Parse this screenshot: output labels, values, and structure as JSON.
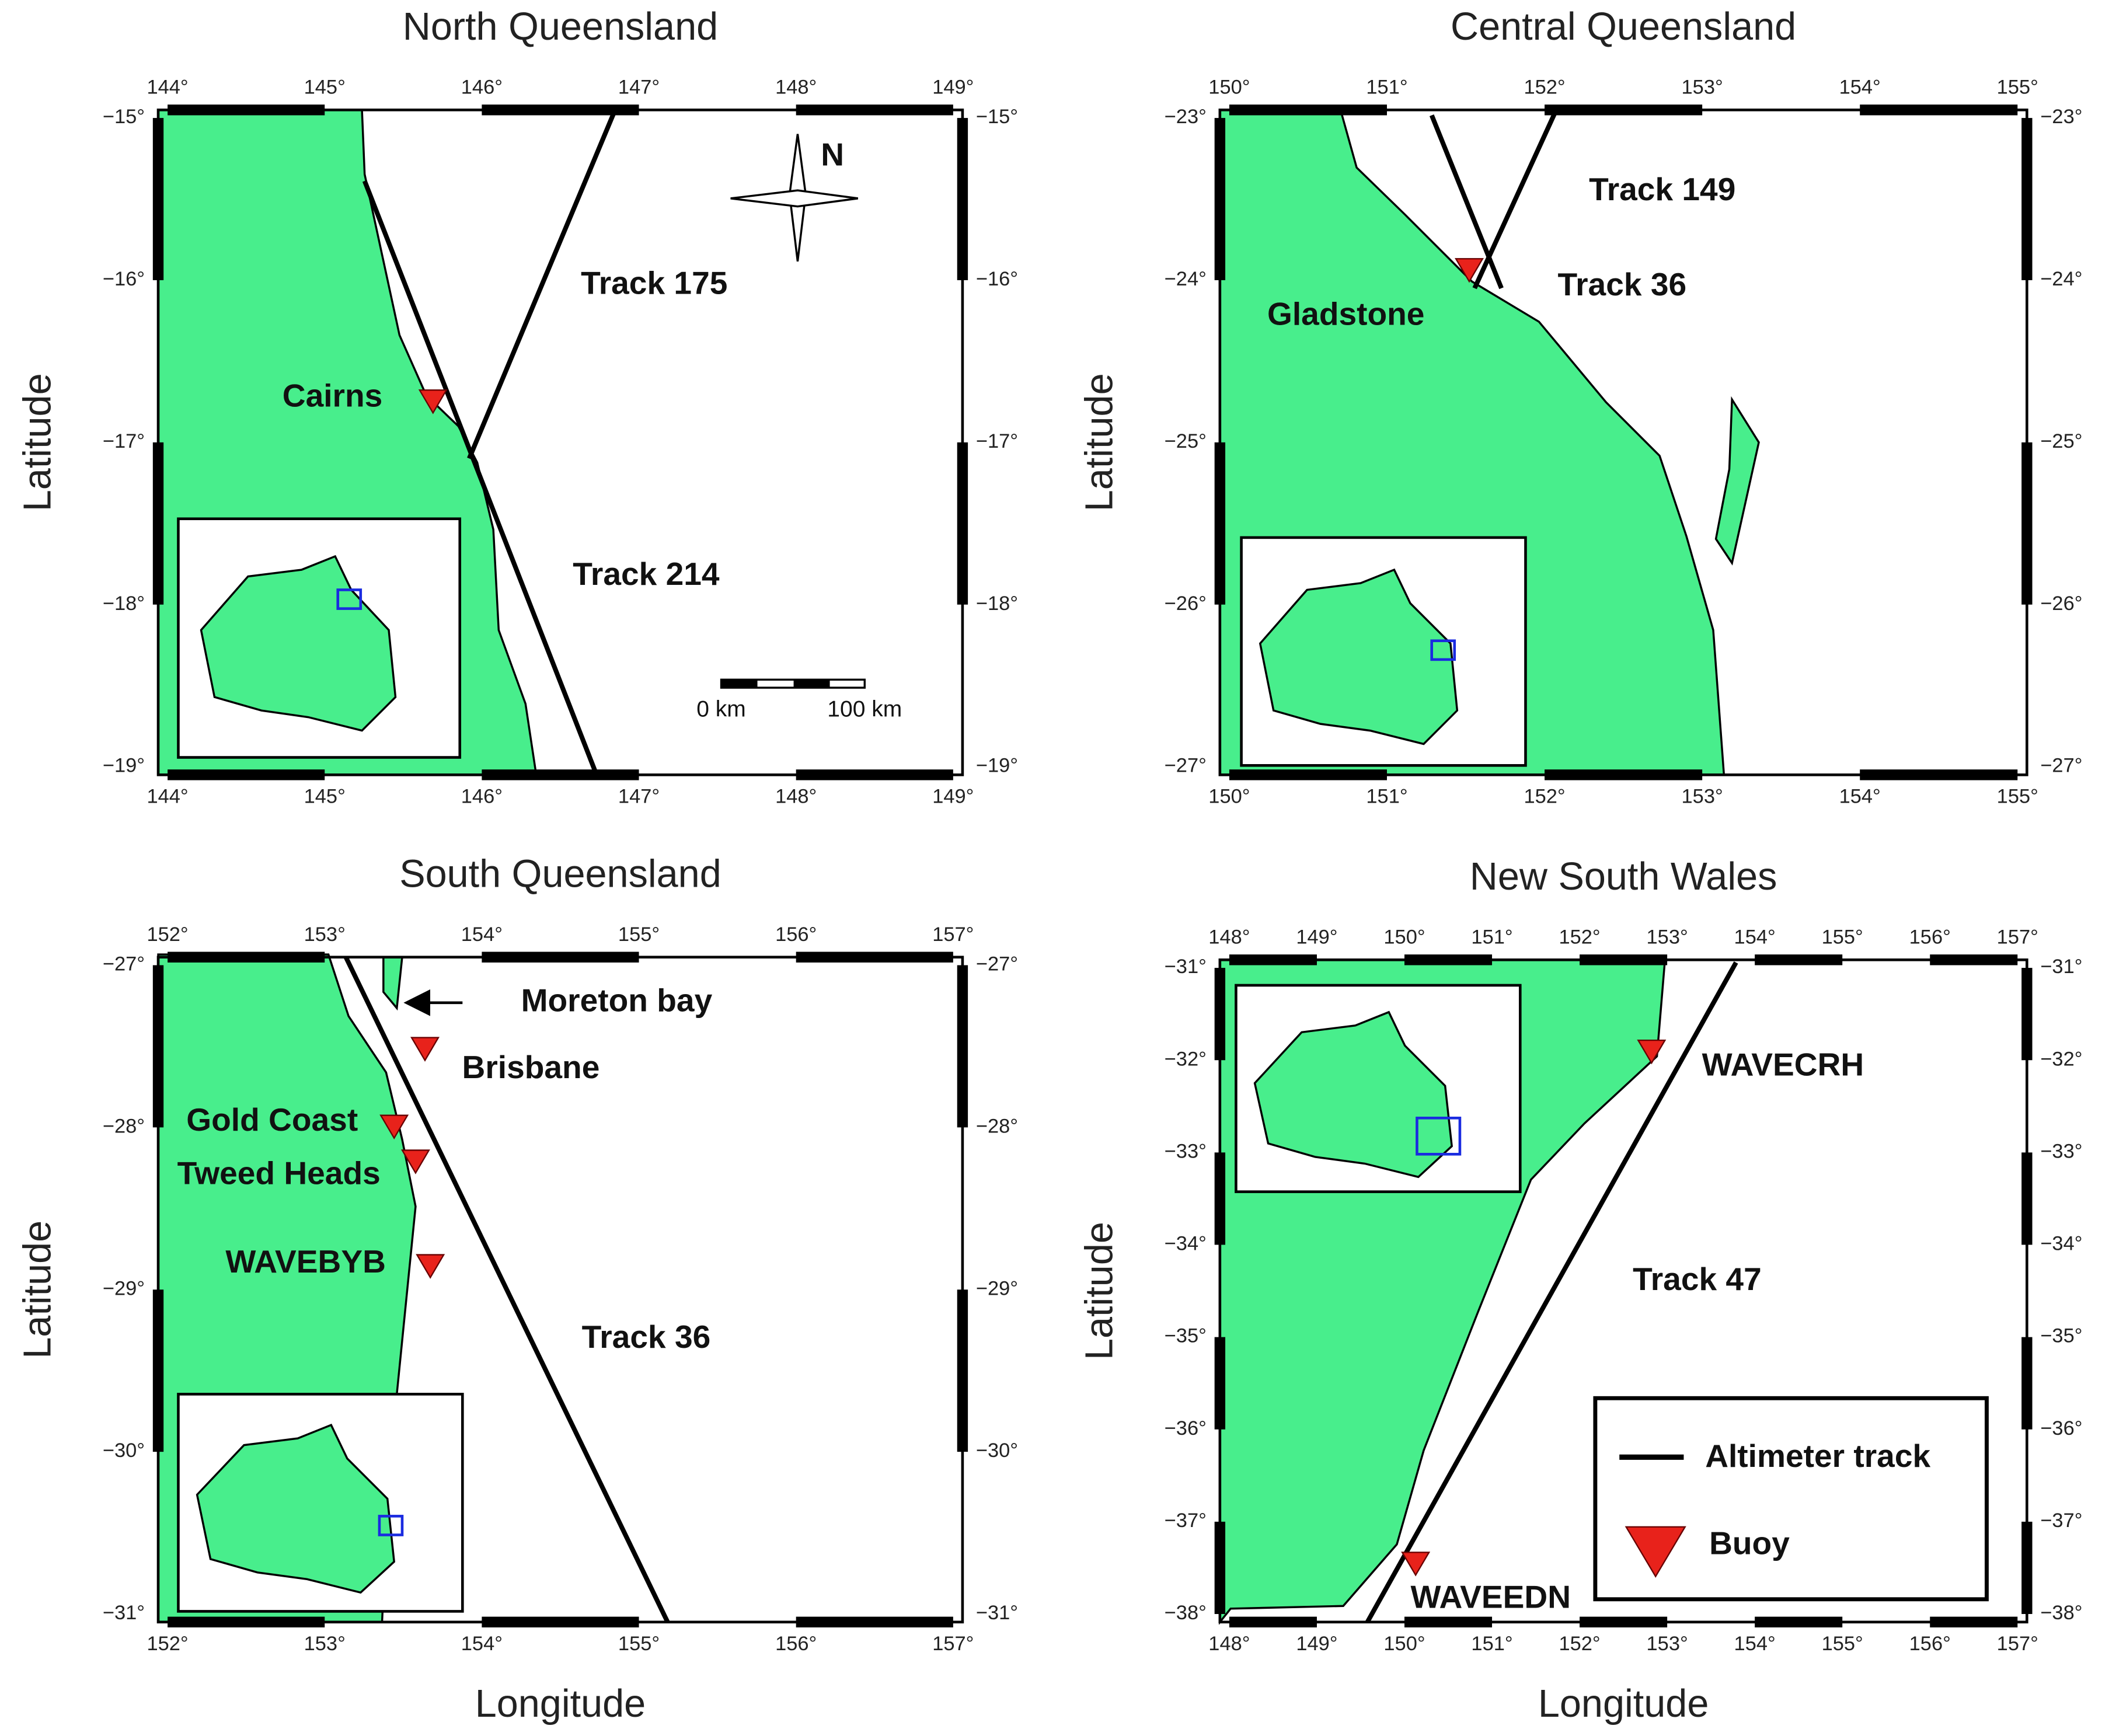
{
  "panels": [
    {
      "title": "North Queensland",
      "y_label": "Latitude",
      "lon_ticks": [
        "144°",
        "145°",
        "146°",
        "147°",
        "148°",
        "149°"
      ],
      "lat_ticks": [
        "−15°",
        "−16°",
        "−17°",
        "−18°",
        "−19°"
      ],
      "labels": [
        "Track 175",
        "Cairns",
        "Track 214"
      ],
      "scale_bar": [
        "0 km",
        "100 km"
      ],
      "north": "N"
    },
    {
      "title": "Central Queensland",
      "y_label": "Latitude",
      "lon_ticks": [
        "150°",
        "151°",
        "152°",
        "153°",
        "154°",
        "155°"
      ],
      "lat_ticks": [
        "−23°",
        "−24°",
        "−25°",
        "−26°",
        "−27°"
      ],
      "labels": [
        "Track 149",
        "Gladstone",
        "Track 36"
      ]
    },
    {
      "title": "South Queensland",
      "y_label": "Latitude",
      "x_label": "Longitude",
      "lon_ticks": [
        "152°",
        "153°",
        "154°",
        "155°",
        "156°",
        "157°"
      ],
      "lat_ticks": [
        "−27°",
        "−28°",
        "−29°",
        "−30°",
        "−31°"
      ],
      "labels": [
        "Moreton bay",
        "Brisbane",
        "Gold Coast",
        "Tweed Heads",
        "WAVEBYB",
        "Track 36"
      ]
    },
    {
      "title": "New South Wales",
      "y_label": "Latitude",
      "x_label": "Longitude",
      "lon_ticks": [
        "148°",
        "149°",
        "150°",
        "151°",
        "152°",
        "153°",
        "154°",
        "155°",
        "156°",
        "157°"
      ],
      "lat_ticks": [
        "−31°",
        "−32°",
        "−33°",
        "−34°",
        "−35°",
        "−36°",
        "−37°",
        "−38°"
      ],
      "labels": [
        "WAVECRH",
        "Track 47",
        "WAVEEDN"
      ],
      "legend": [
        "Altimeter track",
        "Buoy"
      ]
    }
  ]
}
